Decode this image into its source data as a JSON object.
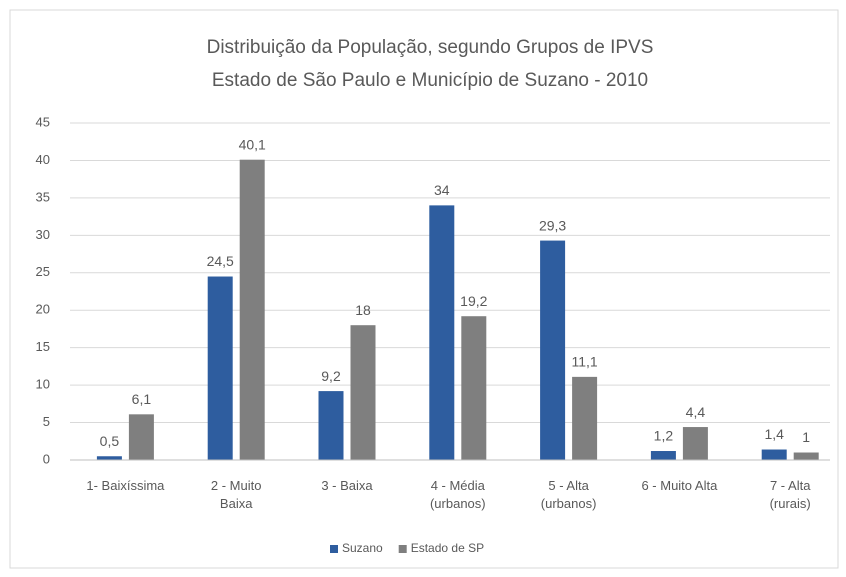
{
  "chart_data": {
    "type": "bar",
    "title": "Distribuição da População, segundo Grupos de IPVS",
    "subtitle": "Estado de São Paulo e Município de Suzano - 2010",
    "categories": [
      "1- Baixíssima",
      "2 - Muito\nBaixa",
      "3 - Baixa",
      "4 - Média\n(urbanos)",
      "5 - Alta\n(urbanos)",
      "6 - Muito Alta",
      "7 - Alta\n(rurais)"
    ],
    "series": [
      {
        "name": "Suzano",
        "color": "#2e5d9f",
        "values": [
          0.5,
          24.5,
          9.2,
          34,
          29.3,
          1.2,
          1.4
        ],
        "value_labels": [
          "0,5",
          "24,5",
          "9,2",
          "34",
          "29,3",
          "1,2",
          "1,4"
        ]
      },
      {
        "name": "Estado de SP",
        "color": "#7f7f7f",
        "values": [
          6.1,
          40.1,
          18,
          19.2,
          11.1,
          4.4,
          1
        ],
        "value_labels": [
          "6,1",
          "40,1",
          "18",
          "19,2",
          "11,1",
          "4,4",
          "1"
        ]
      }
    ],
    "ylim": [
      0,
      45
    ],
    "yticks": [
      0,
      5,
      10,
      15,
      20,
      25,
      30,
      35,
      40,
      45
    ],
    "grid": true,
    "legend": "bottom"
  }
}
